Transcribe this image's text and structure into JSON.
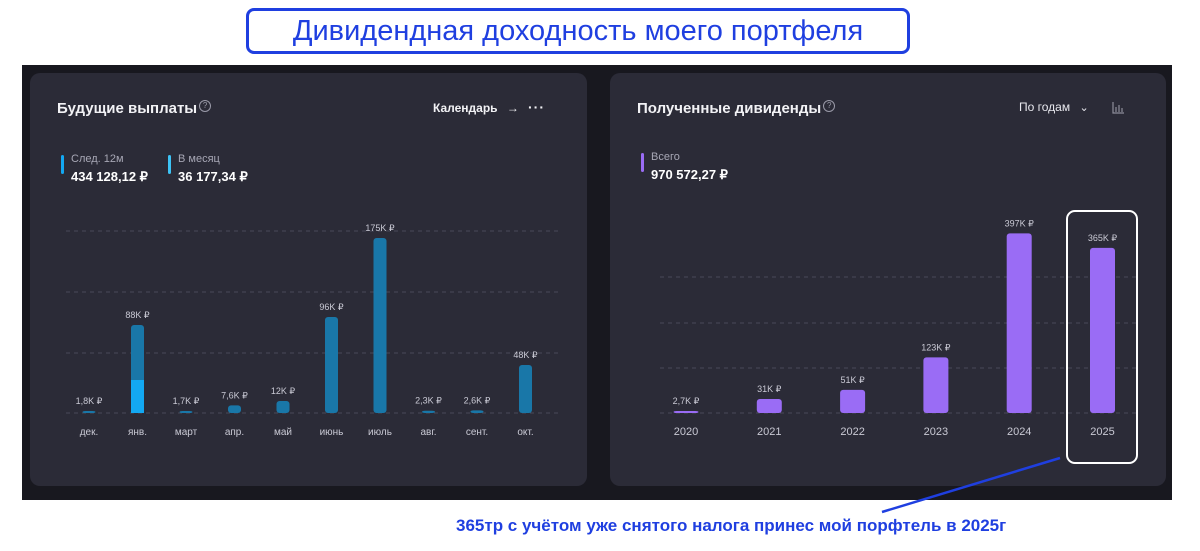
{
  "page_title": "Дивидендная доходность моего портфеля",
  "left_panel": {
    "title": "Будущие выплаты",
    "help": "?",
    "calendar_label": "Календарь",
    "arrow": "→",
    "more": "···",
    "stats": [
      {
        "label": "След. 12м",
        "value": "434 128,12 ₽",
        "color": "#13a8f2"
      },
      {
        "label": "В месяц",
        "value": "36 177,34 ₽",
        "color": "#3dc3f5"
      }
    ]
  },
  "right_panel": {
    "title": "Полученные дивиденды",
    "help": "?",
    "period_label": "По годам",
    "chevron": "⌄",
    "stats": [
      {
        "label": "Всего",
        "value": "970 572,27 ₽",
        "color": "#9a6cf5"
      }
    ]
  },
  "chart_data": [
    {
      "type": "bar",
      "categories": [
        "дек.",
        "янв.",
        "март",
        "апр.",
        "май",
        "июнь",
        "июль",
        "авг.",
        "сент.",
        "окт."
      ],
      "values": [
        1.8,
        88,
        1.7,
        7.6,
        12,
        96,
        175,
        2.3,
        2.6,
        48
      ],
      "highlight": {
        "category": "янв.",
        "value": 33
      },
      "data_labels": [
        "1,8K ₽",
        "88K ₽",
        "1,7K ₽",
        "7,6K ₽",
        "12K ₽",
        "96K ₽",
        "175K ₽",
        "2,3K ₽",
        "2,6K ₽",
        "48K ₽"
      ],
      "ylim": [
        0,
        180
      ],
      "colors": {
        "bar": "#1977a8",
        "highlight": "#13a8f2"
      },
      "grid": true
    },
    {
      "type": "bar",
      "categories": [
        "2020",
        "2021",
        "2022",
        "2023",
        "2024",
        "2025"
      ],
      "values": [
        2.7,
        31,
        51,
        123,
        397,
        365
      ],
      "data_labels": [
        "2,7K ₽",
        "31K ₽",
        "51K ₽",
        "123K ₽",
        "397K ₽",
        "365K ₽"
      ],
      "ylim": [
        0,
        400
      ],
      "colors": {
        "bar": "#9a6cf5"
      },
      "grid": true
    }
  ],
  "caption": "365тр с учётом уже снятого налога принес мой порфтель в 2025г",
  "colors": {
    "frame": "#18181f",
    "panel": "#2b2b37",
    "annotation": "#1f3fe0"
  }
}
